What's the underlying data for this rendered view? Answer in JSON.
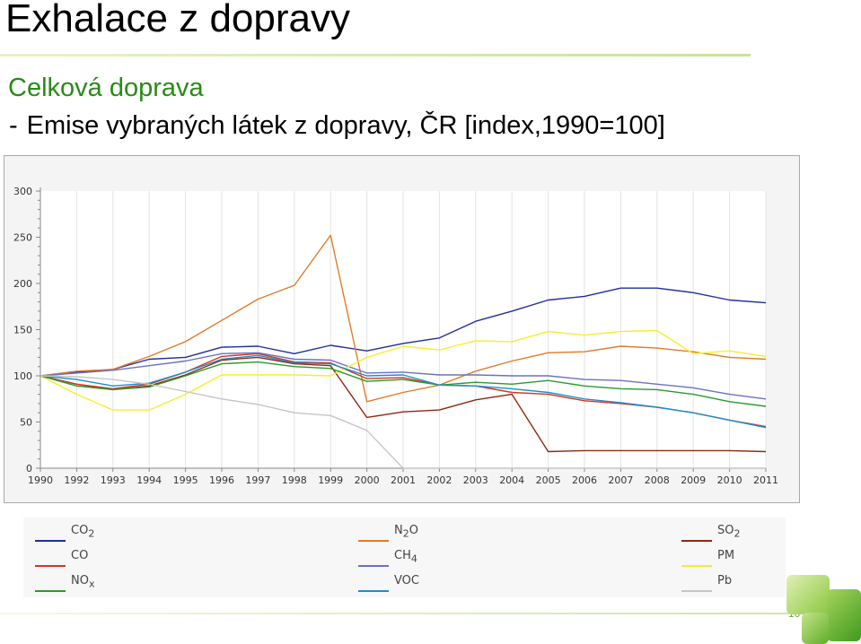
{
  "slide": {
    "title": "Exhalace z dopravy",
    "subtitle": "Celková doprava",
    "bullet_dash": "-",
    "bullet_text": "Emise vybraných látek z dopravy, ČR [index,1990=100]",
    "page_number": "10"
  },
  "legend": [
    {
      "label": "CO",
      "sub": "2",
      "color": "#1f2f9c"
    },
    {
      "label": "N",
      "sub": "2",
      "label_after": "O",
      "color": "#e07b2a"
    },
    {
      "label": "SO",
      "sub": "2",
      "color": "#8b2a10"
    },
    {
      "label": "CO",
      "sub": "",
      "color": "#d8341c"
    },
    {
      "label": "CH",
      "sub": "4",
      "color": "#6b72c2"
    },
    {
      "label": "PM",
      "sub": "",
      "color": "#f5ef2a"
    },
    {
      "label": "NO",
      "sub": "x",
      "color": "#2b9a2b"
    },
    {
      "label": "VOC",
      "sub": "",
      "color": "#1a8fd0"
    },
    {
      "label": "Pb",
      "sub": "",
      "color": "#c6c6c6"
    }
  ],
  "chart_data": {
    "type": "line",
    "x": [
      1990,
      1992,
      1993,
      1994,
      1995,
      1996,
      1997,
      1998,
      1999,
      2000,
      2001,
      2002,
      2003,
      2004,
      2005,
      2006,
      2007,
      2008,
      2009,
      2010,
      2011
    ],
    "ylim": [
      0,
      300
    ],
    "yticks": [
      0,
      50,
      100,
      150,
      200,
      250,
      300
    ],
    "grid": true,
    "series": [
      {
        "name": "CO2",
        "color": "#1f2f9c",
        "values": [
          100,
          104,
          107,
          118,
          120,
          131,
          132,
          124,
          133,
          127,
          135,
          141,
          159,
          170,
          182,
          186,
          195,
          195,
          190,
          182,
          179
        ]
      },
      {
        "name": "N2O",
        "color": "#e07b2a",
        "values": [
          100,
          105,
          107,
          121,
          137,
          160,
          183,
          198,
          252,
          72,
          82,
          90,
          105,
          116,
          125,
          126,
          132,
          130,
          126,
          120,
          118
        ]
      },
      {
        "name": "SO2",
        "color": "#8b2a10",
        "values": [
          100,
          91,
          85,
          89,
          101,
          117,
          120,
          113,
          111,
          55,
          61,
          63,
          74,
          80,
          18,
          19,
          19,
          19,
          19,
          19,
          18
        ]
      },
      {
        "name": "CO",
        "color": "#d8341c",
        "values": [
          100,
          91,
          86,
          91,
          104,
          121,
          124,
          115,
          114,
          97,
          98,
          90,
          89,
          82,
          80,
          73,
          70,
          66,
          60,
          52,
          45
        ]
      },
      {
        "name": "CH4",
        "color": "#6b72c2",
        "values": [
          100,
          103,
          106,
          111,
          116,
          124,
          125,
          118,
          117,
          103,
          104,
          101,
          101,
          100,
          100,
          96,
          95,
          91,
          87,
          80,
          75
        ]
      },
      {
        "name": "PM",
        "color": "#f5ef2a",
        "values": [
          100,
          80,
          63,
          63,
          80,
          101,
          101,
          101,
          100,
          120,
          132,
          128,
          138,
          137,
          148,
          144,
          148,
          149,
          124,
          127,
          121
        ]
      },
      {
        "name": "NOx",
        "color": "#2b9a2b",
        "values": [
          100,
          89,
          85,
          88,
          100,
          113,
          115,
          110,
          108,
          94,
          96,
          90,
          93,
          91,
          95,
          89,
          86,
          85,
          80,
          72,
          67
        ]
      },
      {
        "name": "VOC",
        "color": "#1a8fd0",
        "values": [
          100,
          96,
          89,
          92,
          104,
          118,
          122,
          114,
          113,
          100,
          101,
          90,
          89,
          86,
          82,
          75,
          71,
          66,
          60,
          52,
          44
        ]
      },
      {
        "name": "Pb",
        "color": "#c6c6c6",
        "values": [
          100,
          99,
          96,
          91,
          83,
          75,
          69,
          60,
          57,
          41,
          0,
          0,
          0,
          0,
          0,
          0,
          0,
          0,
          0,
          0,
          0
        ]
      }
    ]
  }
}
